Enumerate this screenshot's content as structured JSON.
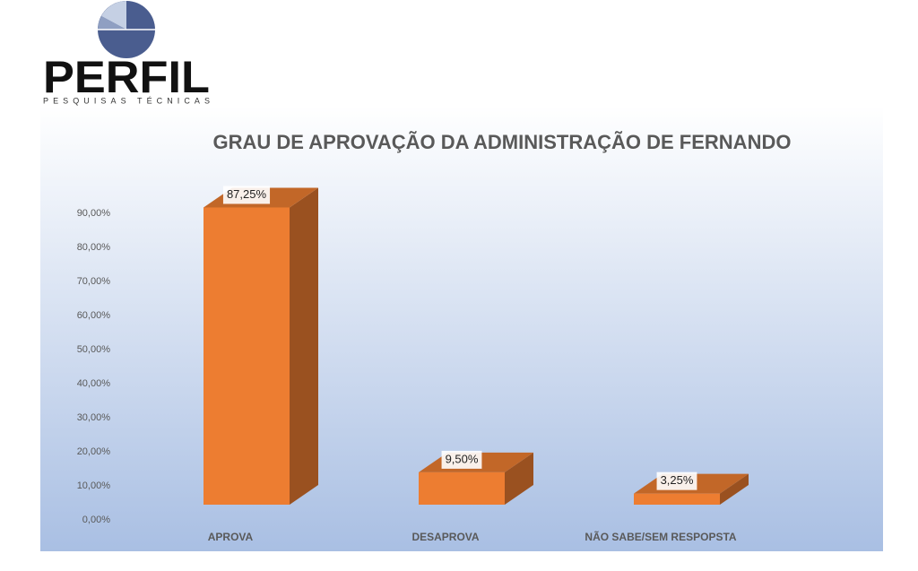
{
  "logo": {
    "name": "PERFIL",
    "tagline": "PESQUISAS TÉCNICAS"
  },
  "chart_data": {
    "type": "bar3d",
    "title": "GRAU DE APROVAÇÃO DA ADMINISTRAÇÃO DE FERNANDO",
    "categories": [
      "APROVA",
      "DESAPROVA",
      "NÃO SABE/SEM RESPOPSTA"
    ],
    "values": [
      87.25,
      9.5,
      3.25
    ],
    "value_labels": [
      "87,25%",
      "9,50%",
      "3,25%"
    ],
    "color": "#ed7d31",
    "ylim": [
      0,
      90
    ],
    "yticks": [
      {
        "value": 0,
        "label": "0,00%"
      },
      {
        "value": 10,
        "label": "10,00%"
      },
      {
        "value": 20,
        "label": "20,00%"
      },
      {
        "value": 30,
        "label": "30,00%"
      },
      {
        "value": 40,
        "label": "40,00%"
      },
      {
        "value": 50,
        "label": "50,00%"
      },
      {
        "value": 60,
        "label": "60,00%"
      },
      {
        "value": 70,
        "label": "70,00%"
      },
      {
        "value": 80,
        "label": "80,00%"
      },
      {
        "value": 90,
        "label": "90,00%"
      }
    ],
    "grid": false
  }
}
